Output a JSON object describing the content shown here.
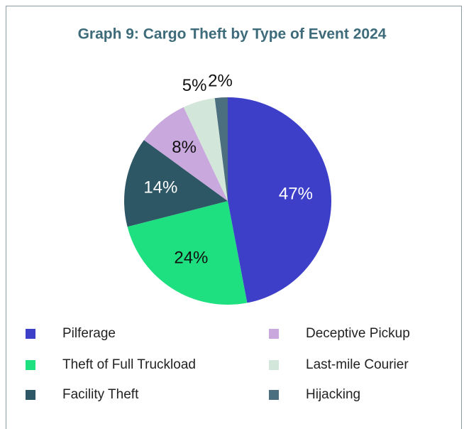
{
  "chart_data": {
    "type": "pie",
    "title": "Graph 9: Cargo Theft by Type of Event 2024",
    "categories": [
      "Pilferage",
      "Theft of Full Truckload",
      "Facility Theft",
      "Deceptive Pickup",
      "Last-mile Courier",
      "Hijacking"
    ],
    "values": [
      47,
      24,
      14,
      8,
      5,
      2
    ],
    "value_labels": [
      "47%",
      "24%",
      "14%",
      "8%",
      "5%",
      "2%"
    ],
    "colors": [
      "#3d3fc8",
      "#1fe080",
      "#2e5766",
      "#c9a8de",
      "#d3e6da",
      "#4b6f7f"
    ]
  }
}
